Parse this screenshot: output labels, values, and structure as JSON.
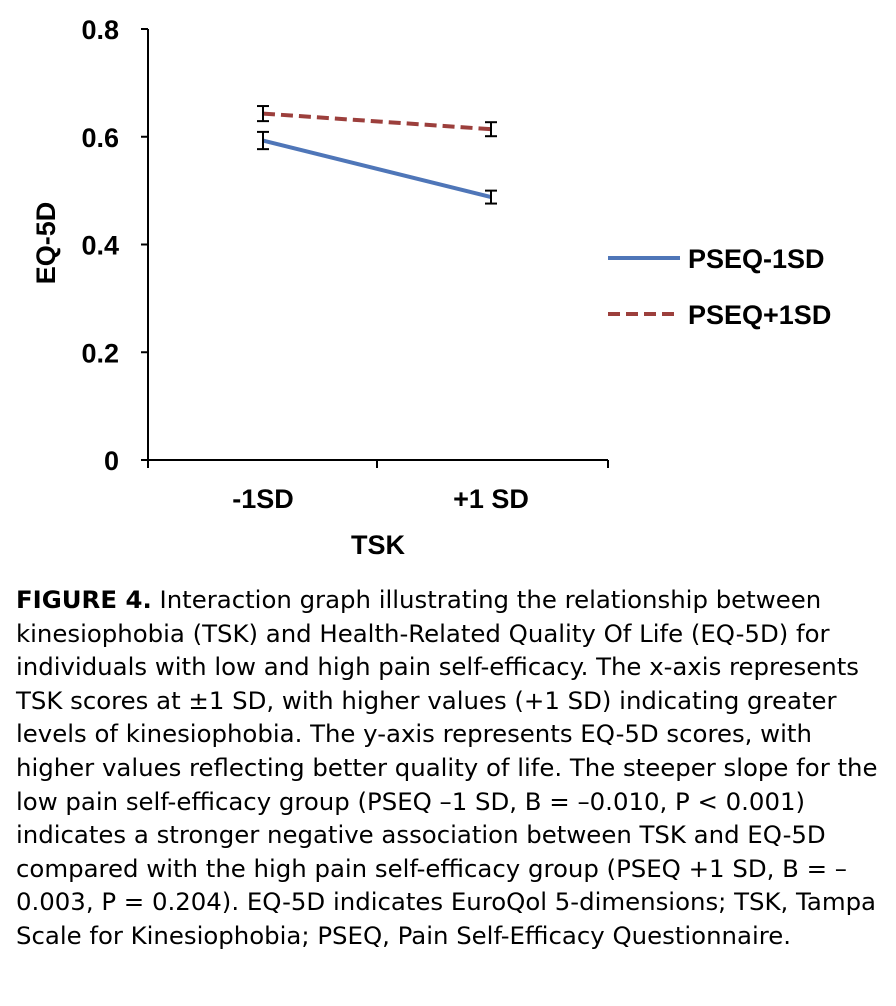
{
  "chart_data": {
    "type": "line",
    "categories": [
      "-1SD",
      "+1 SD"
    ],
    "xlabel": "TSK",
    "ylabel": "EQ-5D",
    "ylim": [
      0,
      0.8
    ],
    "yticks": [
      "0",
      "0.2",
      "0.4",
      "0.6",
      "0.8"
    ],
    "ytick_values": [
      0,
      0.2,
      0.4,
      0.6,
      0.8
    ],
    "grid": false,
    "legend_position": "right",
    "series": [
      {
        "name": "PSEQ-1SD",
        "values": [
          0.593,
          0.488
        ],
        "error": [
          0.016,
          0.012
        ],
        "color": "#4f76b8",
        "style": "solid"
      },
      {
        "name": "PSEQ+1SD",
        "values": [
          0.643,
          0.614
        ],
        "error": [
          0.014,
          0.013
        ],
        "color": "#9c3f3c",
        "style": "dashed"
      }
    ]
  },
  "caption": {
    "label": "FIGURE 4.",
    "text": "Interaction graph illustrating the relationship between kinesiophobia (TSK) and Health-Related Quality Of Life (EQ-5D) for individuals with low and high pain self-efficacy. The x-axis represents TSK scores at ±1 SD, with higher values (+1 SD) indicating greater levels of kinesiophobia. The y-axis represents EQ-5D scores, with higher values reflecting better quality of life. The steeper slope for the low pain self-efficacy group (PSEQ –1 SD, B = –0.010, P < 0.001) indicates a stronger negative association between TSK and EQ-5D compared with the high pain self-efficacy group (PSEQ +1 SD, B = –0.003, P = 0.204). EQ-5D indicates EuroQol 5-dimensions; TSK, Tampa Scale for Kinesiophobia; PSEQ, Pain Self-Efficacy Questionnaire."
  }
}
